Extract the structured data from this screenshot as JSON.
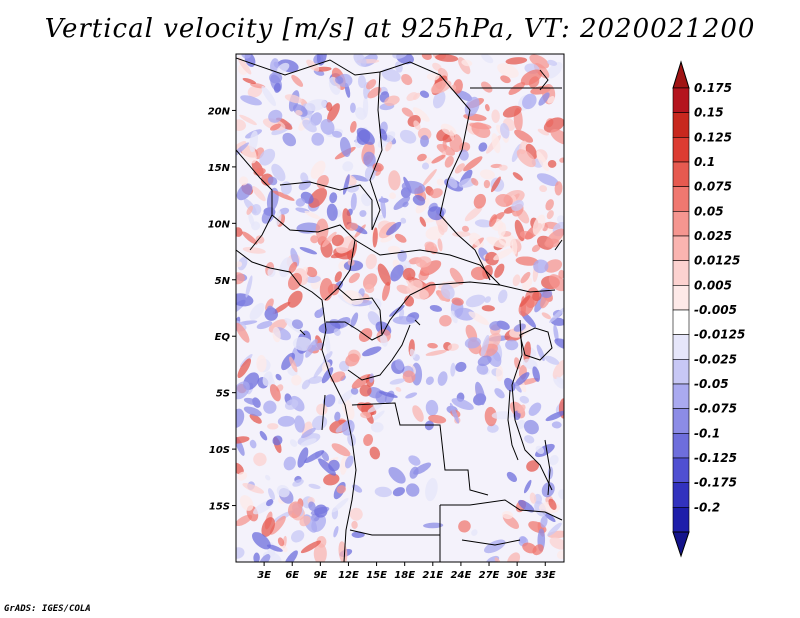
{
  "title": "Vertical velocity [m/s] at 925hPa, VT: 2020021200",
  "credit": "GrADS: IGES/COLA",
  "map": {
    "lon_range": [
      0,
      35
    ],
    "lat_range": [
      -20,
      25
    ],
    "lat_ticks": [
      {
        "value": 20,
        "label": "20N"
      },
      {
        "value": 15,
        "label": "15N"
      },
      {
        "value": 10,
        "label": "10N"
      },
      {
        "value": 5,
        "label": "5N"
      },
      {
        "value": 0,
        "label": "EQ"
      },
      {
        "value": -5,
        "label": "5S"
      },
      {
        "value": -10,
        "label": "10S"
      },
      {
        "value": -15,
        "label": "15S"
      }
    ],
    "lon_ticks": [
      {
        "value": 3,
        "label": "3E"
      },
      {
        "value": 6,
        "label": "6E"
      },
      {
        "value": 9,
        "label": "9E"
      },
      {
        "value": 12,
        "label": "12E"
      },
      {
        "value": 15,
        "label": "15E"
      },
      {
        "value": 18,
        "label": "18E"
      },
      {
        "value": 21,
        "label": "21E"
      },
      {
        "value": 24,
        "label": "24E"
      },
      {
        "value": 27,
        "label": "27E"
      },
      {
        "value": 30,
        "label": "30E"
      },
      {
        "value": 33,
        "label": "33E"
      }
    ]
  },
  "colorbar": {
    "levels": [
      {
        "label": "0.175",
        "color": "#b4141e"
      },
      {
        "label": "0.15",
        "color": "#c8281e"
      },
      {
        "label": "0.125",
        "color": "#dc3c32"
      },
      {
        "label": "0.1",
        "color": "#e65a50"
      },
      {
        "label": "0.075",
        "color": "#f07870"
      },
      {
        "label": "0.05",
        "color": "#f59690"
      },
      {
        "label": "0.025",
        "color": "#fab4b0"
      },
      {
        "label": "0.0125",
        "color": "#fcd2d0"
      },
      {
        "label": "0.005",
        "color": "#fde9e8"
      },
      {
        "label": "-0.005",
        "color": "#ffffff"
      },
      {
        "label": "-0.0125",
        "color": "#e6e6fa"
      },
      {
        "label": "-0.025",
        "color": "#c8c8f5"
      },
      {
        "label": "-0.05",
        "color": "#aaaaf0"
      },
      {
        "label": "-0.075",
        "color": "#8c8ce6"
      },
      {
        "label": "-0.1",
        "color": "#6e6edc"
      },
      {
        "label": "-0.125",
        "color": "#5050d2"
      },
      {
        "label": "-0.175",
        "color": "#3232be"
      },
      {
        "label": "-0.2",
        "color": "#1e1eaa"
      }
    ],
    "top_color": "#a01414",
    "bottom_color": "#14148c"
  }
}
